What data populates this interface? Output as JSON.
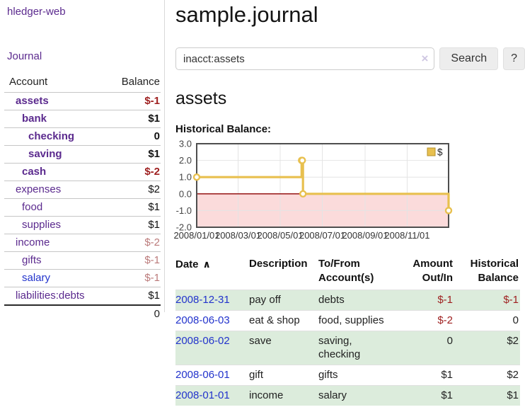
{
  "colors": {
    "link_purple": "#5b2a8e",
    "link_blue": "#2233cc",
    "negative_strong": "#9e1f1f",
    "negative_soft": "#bb7a7a",
    "row_green": "#dcecdc"
  },
  "sidebar": {
    "brand": "hledger-web",
    "journal_link": "Journal",
    "accounts": {
      "headers": [
        "Account",
        "Balance"
      ],
      "rows": [
        {
          "name": "assets",
          "balance": "$-1",
          "indent": 0,
          "bold": true,
          "name_color": "purple",
          "balance_tone": "neg_strong"
        },
        {
          "name": "bank",
          "balance": "$1",
          "indent": 1,
          "bold": true,
          "name_color": "purple",
          "balance_tone": "normal"
        },
        {
          "name": "checking",
          "balance": "0",
          "indent": 2,
          "bold": true,
          "name_color": "purple",
          "balance_tone": "normal"
        },
        {
          "name": "saving",
          "balance": "$1",
          "indent": 2,
          "bold": true,
          "name_color": "purple",
          "balance_tone": "normal"
        },
        {
          "name": "cash",
          "balance": "$-2",
          "indent": 1,
          "bold": true,
          "name_color": "purple",
          "balance_tone": "neg_strong"
        },
        {
          "name": "expenses",
          "balance": "$2",
          "indent": 0,
          "bold": false,
          "name_color": "purple",
          "balance_tone": "normal"
        },
        {
          "name": "food",
          "balance": "$1",
          "indent": 1,
          "bold": false,
          "name_color": "purple",
          "balance_tone": "normal"
        },
        {
          "name": "supplies",
          "balance": "$1",
          "indent": 1,
          "bold": false,
          "name_color": "purple",
          "balance_tone": "normal"
        },
        {
          "name": "income",
          "balance": "$-2",
          "indent": 0,
          "bold": false,
          "name_color": "purple",
          "balance_tone": "neg_soft"
        },
        {
          "name": "gifts",
          "balance": "$-1",
          "indent": 1,
          "bold": false,
          "name_color": "purple",
          "balance_tone": "neg_soft"
        },
        {
          "name": "salary",
          "balance": "$-1",
          "indent": 1,
          "bold": false,
          "name_color": "blue",
          "balance_tone": "neg_soft"
        },
        {
          "name": "liabilities:debts",
          "balance": "$1",
          "indent": 0,
          "bold": false,
          "name_color": "purple",
          "balance_tone": "normal"
        }
      ],
      "total": "0"
    }
  },
  "main": {
    "title": "sample.journal",
    "search": {
      "value": "inacct:assets",
      "clear_icon": "×",
      "button_label": "Search",
      "help_label": "?"
    },
    "account_heading": "assets",
    "chart_label": "Historical Balance:"
  },
  "register_table": {
    "headers": [
      {
        "line1": "Date",
        "line2": "",
        "sort_icon": "∧",
        "align": "left"
      },
      {
        "line1": "Description",
        "line2": "",
        "align": "left"
      },
      {
        "line1": "To/From",
        "line2": "Account(s)",
        "align": "left"
      },
      {
        "line1": "Amount",
        "line2": "Out/In",
        "align": "right"
      },
      {
        "line1": "Historical",
        "line2": "Balance",
        "align": "right"
      }
    ],
    "rows": [
      {
        "date": "2008-12-31",
        "description": "pay off",
        "accounts": "debts",
        "amount": "$-1",
        "amount_negative": true,
        "balance": "$-1",
        "balance_negative": true,
        "shaded": true
      },
      {
        "date": "2008-06-03",
        "description": "eat & shop",
        "accounts": "food, supplies",
        "amount": "$-2",
        "amount_negative": true,
        "balance": "0",
        "balance_negative": false,
        "shaded": false
      },
      {
        "date": "2008-06-02",
        "description": "save",
        "accounts": "saving, checking",
        "amount": "0",
        "amount_negative": false,
        "balance": "$2",
        "balance_negative": false,
        "shaded": true
      },
      {
        "date": "2008-06-01",
        "description": "gift",
        "accounts": "gifts",
        "amount": "$1",
        "amount_negative": false,
        "balance": "$2",
        "balance_negative": false,
        "shaded": false
      },
      {
        "date": "2008-01-01",
        "description": "income",
        "accounts": "salary",
        "amount": "$1",
        "amount_negative": false,
        "balance": "$1",
        "balance_negative": false,
        "shaded": true
      }
    ]
  },
  "chart_data": {
    "type": "line",
    "step": true,
    "title": "Historical Balance:",
    "series": [
      {
        "name": "$",
        "color": "#e8c04f",
        "points": [
          [
            "2008-01-01",
            1
          ],
          [
            "2008-06-01",
            2
          ],
          [
            "2008-06-02",
            2
          ],
          [
            "2008-06-03",
            0
          ],
          [
            "2008-12-31",
            -1
          ]
        ]
      }
    ],
    "x_range": [
      "2008-01-01",
      "2008-12-31"
    ],
    "x_ticks": [
      {
        "date": "2008-01-01",
        "label": "2008/01/01"
      },
      {
        "date": "2008-03-01",
        "label": "2008/03/01"
      },
      {
        "date": "2008-05-01",
        "label": "2008/05/01"
      },
      {
        "date": "2008-07-01",
        "label": "2008/07/01"
      },
      {
        "date": "2008-09-01",
        "label": "2008/09/01"
      },
      {
        "date": "2008-11-01",
        "label": "2008/11/01"
      }
    ],
    "y_ticks": [
      3.0,
      2.0,
      1.0,
      0.0,
      -1.0,
      -2.0
    ],
    "ylim": [
      -2,
      3
    ],
    "grid": true,
    "legend_position": "top-right",
    "legend_entries": [
      "$"
    ],
    "negative_region_color": "#fbdbdb",
    "zero_line_color": "#8b0000",
    "plot_border_color": "#4e4e4e",
    "gridline_color": "#e4e4e4"
  }
}
